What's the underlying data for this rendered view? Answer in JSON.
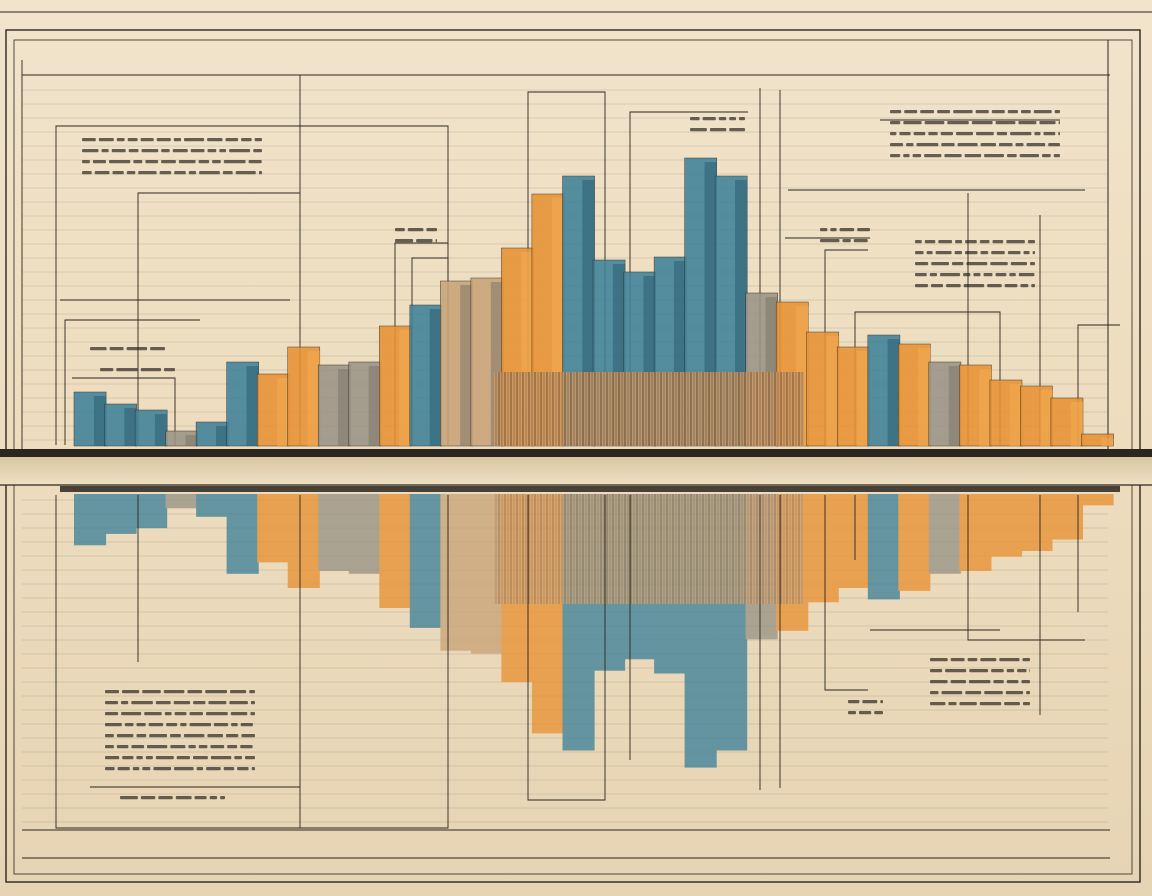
{
  "palette": {
    "paper": "#efe2c8",
    "paper_dark": "#e2d2b2",
    "ink": "#2b2620",
    "teal": "#3f8299",
    "teal_dark": "#2b5f73",
    "orange": "#e89234",
    "orange_light": "#f0ac52",
    "tan": "#c9a479",
    "grey": "#9a9486",
    "brown": "#8a4a22"
  },
  "bars": [
    {
      "c": "teal",
      "v": 0.18
    },
    {
      "c": "teal",
      "v": 0.14
    },
    {
      "c": "teal",
      "v": 0.12
    },
    {
      "c": "grey",
      "v": 0.05
    },
    {
      "c": "teal",
      "v": 0.08
    },
    {
      "c": "teal",
      "v": 0.28
    },
    {
      "c": "orange",
      "v": 0.24
    },
    {
      "c": "orange",
      "v": 0.33
    },
    {
      "c": "grey",
      "v": 0.27
    },
    {
      "c": "grey",
      "v": 0.28
    },
    {
      "c": "orange",
      "v": 0.4
    },
    {
      "c": "teal",
      "v": 0.47
    },
    {
      "c": "tan",
      "v": 0.55
    },
    {
      "c": "tan",
      "v": 0.56
    },
    {
      "c": "orange",
      "v": 0.66
    },
    {
      "c": "orange",
      "v": 0.84
    },
    {
      "c": "teal",
      "v": 0.9
    },
    {
      "c": "teal",
      "v": 0.62
    },
    {
      "c": "teal",
      "v": 0.58
    },
    {
      "c": "teal",
      "v": 0.63
    },
    {
      "c": "teal",
      "v": 0.96
    },
    {
      "c": "teal",
      "v": 0.9
    },
    {
      "c": "grey",
      "v": 0.51
    },
    {
      "c": "orange",
      "v": 0.48
    },
    {
      "c": "orange",
      "v": 0.38
    },
    {
      "c": "orange",
      "v": 0.33
    },
    {
      "c": "teal",
      "v": 0.37
    },
    {
      "c": "orange",
      "v": 0.34
    },
    {
      "c": "grey",
      "v": 0.28
    },
    {
      "c": "orange",
      "v": 0.27
    },
    {
      "c": "orange",
      "v": 0.22
    },
    {
      "c": "orange",
      "v": 0.2
    },
    {
      "c": "orange",
      "v": 0.16
    },
    {
      "c": "orange",
      "v": 0.04
    }
  ],
  "icons": [
    "hatched-bars"
  ]
}
